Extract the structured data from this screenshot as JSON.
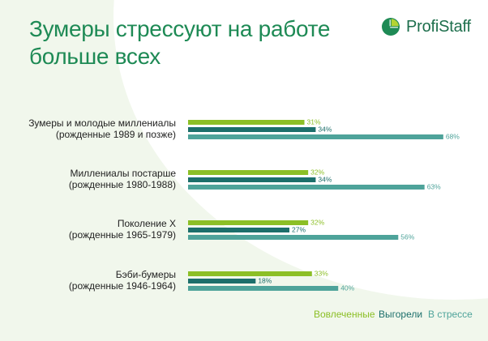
{
  "title": {
    "line1": "Зумеры стрессуют на работе",
    "line2": "больше всех"
  },
  "logo": {
    "text": "ProfiStaff",
    "icon": "pie-circle-icon"
  },
  "colors": {
    "title": "#1e8a55",
    "logo_text": "#1d6e4c",
    "logo_main": "#1e8a55",
    "logo_accent": "#b5d334",
    "category_label": "#222222"
  },
  "chart_data": {
    "type": "bar",
    "orientation": "horizontal",
    "categories": [
      {
        "line1": "Зумеры и молодые миллениалы",
        "line2": "(рожденные 1989 и позже)"
      },
      {
        "line1": "Миллениалы постарше",
        "line2": "(рожденные 1980-1988)"
      },
      {
        "line1": "Поколение X",
        "line2": "(рожденные 1965-1979)"
      },
      {
        "line1": "Бэби-бумеры",
        "line2": "(рожденные 1946-1964)"
      }
    ],
    "series": [
      {
        "name": "Вовлеченные",
        "color": "#8cbf26",
        "values": [
          31,
          32,
          32,
          33
        ]
      },
      {
        "name": "Выгорели",
        "color": "#1c6f6b",
        "values": [
          34,
          34,
          27,
          18
        ]
      },
      {
        "name": "В стрессе",
        "color": "#4ea39a",
        "values": [
          68,
          63,
          56,
          40
        ]
      }
    ],
    "value_suffix": "%",
    "grid": false,
    "legend": "bottom-right"
  }
}
